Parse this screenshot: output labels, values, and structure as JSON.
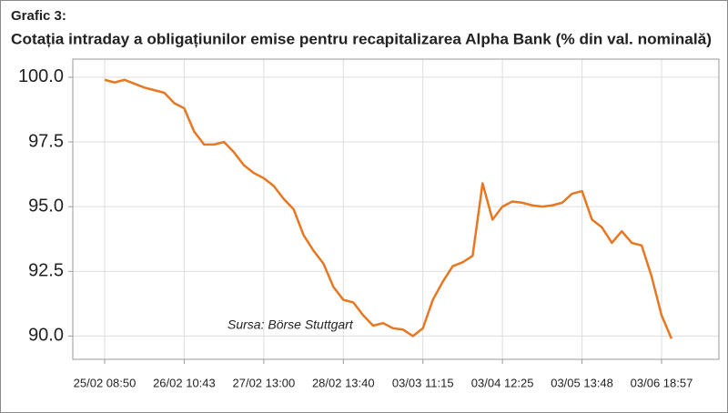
{
  "chart_data": {
    "type": "line",
    "kicker": "Grafic 3:",
    "title": "Cotația intraday a obligațiunilor emise pentru recapitalizarea Alpha Bank (% din val. nominală)",
    "annotation": "Sursa: Börse Stuttgart",
    "categories": [
      "25/02 08:50",
      null,
      null,
      null,
      null,
      null,
      null,
      null,
      "26/02 10:43",
      null,
      null,
      null,
      null,
      null,
      null,
      null,
      "27/02 13:00",
      null,
      null,
      null,
      null,
      null,
      null,
      null,
      "28/02 13:40",
      null,
      null,
      null,
      null,
      null,
      null,
      null,
      "03/03 11:15",
      null,
      null,
      null,
      null,
      null,
      null,
      null,
      "03/04 12:25",
      null,
      null,
      null,
      null,
      null,
      null,
      null,
      "03/05 13:48",
      null,
      null,
      null,
      null,
      null,
      null,
      null,
      "03/06 18:57",
      null
    ],
    "series": [
      {
        "name": "Alpha Bank",
        "color": "#e87722",
        "values": [
          99.9,
          99.8,
          99.9,
          99.75,
          99.6,
          99.5,
          99.4,
          99.0,
          98.8,
          97.9,
          97.4,
          97.4,
          97.5,
          97.1,
          96.6,
          96.3,
          96.1,
          95.8,
          95.3,
          94.9,
          93.9,
          93.3,
          92.8,
          91.9,
          91.4,
          91.3,
          90.8,
          90.4,
          90.5,
          90.3,
          90.25,
          90.0,
          90.3,
          91.4,
          92.1,
          92.7,
          92.85,
          93.1,
          95.9,
          94.5,
          95.0,
          95.2,
          95.15,
          95.05,
          95.0,
          95.05,
          95.15,
          95.5,
          95.6,
          94.5,
          94.2,
          93.6,
          94.05,
          93.6,
          93.5,
          92.3,
          90.8,
          89.9
        ]
      }
    ],
    "ylim": [
      89.1,
      100.7
    ],
    "yticks": [
      {
        "value": 90,
        "label": "90.0"
      },
      92.5,
      {
        "value": 95,
        "label": "95.0"
      },
      97.5,
      {
        "value": 100,
        "label": "100.0"
      }
    ],
    "grid": true
  }
}
